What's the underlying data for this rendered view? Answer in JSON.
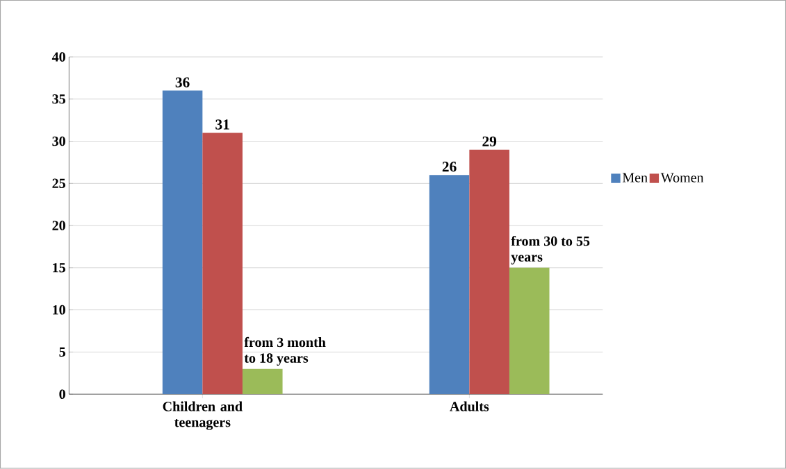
{
  "chart_data": {
    "type": "bar",
    "categories": [
      "Children and teenagers",
      "Adults"
    ],
    "series": [
      {
        "name": "Men",
        "color": "#4f81bd",
        "values": [
          36,
          26
        ],
        "value_labels": [
          "36",
          "26"
        ]
      },
      {
        "name": "Women",
        "color": "#c0504d",
        "values": [
          31,
          29
        ],
        "value_labels": [
          "31",
          "29"
        ]
      },
      {
        "color": "#9bbb59",
        "values": [
          3,
          15
        ],
        "value_labels": [
          "from 3 month to 18 years",
          "from 30 to 55 years"
        ]
      }
    ],
    "ylim": [
      0,
      40
    ],
    "yticks": [
      0,
      5,
      10,
      15,
      20,
      25,
      30,
      35,
      40
    ],
    "grid": "y",
    "legend": "right"
  }
}
